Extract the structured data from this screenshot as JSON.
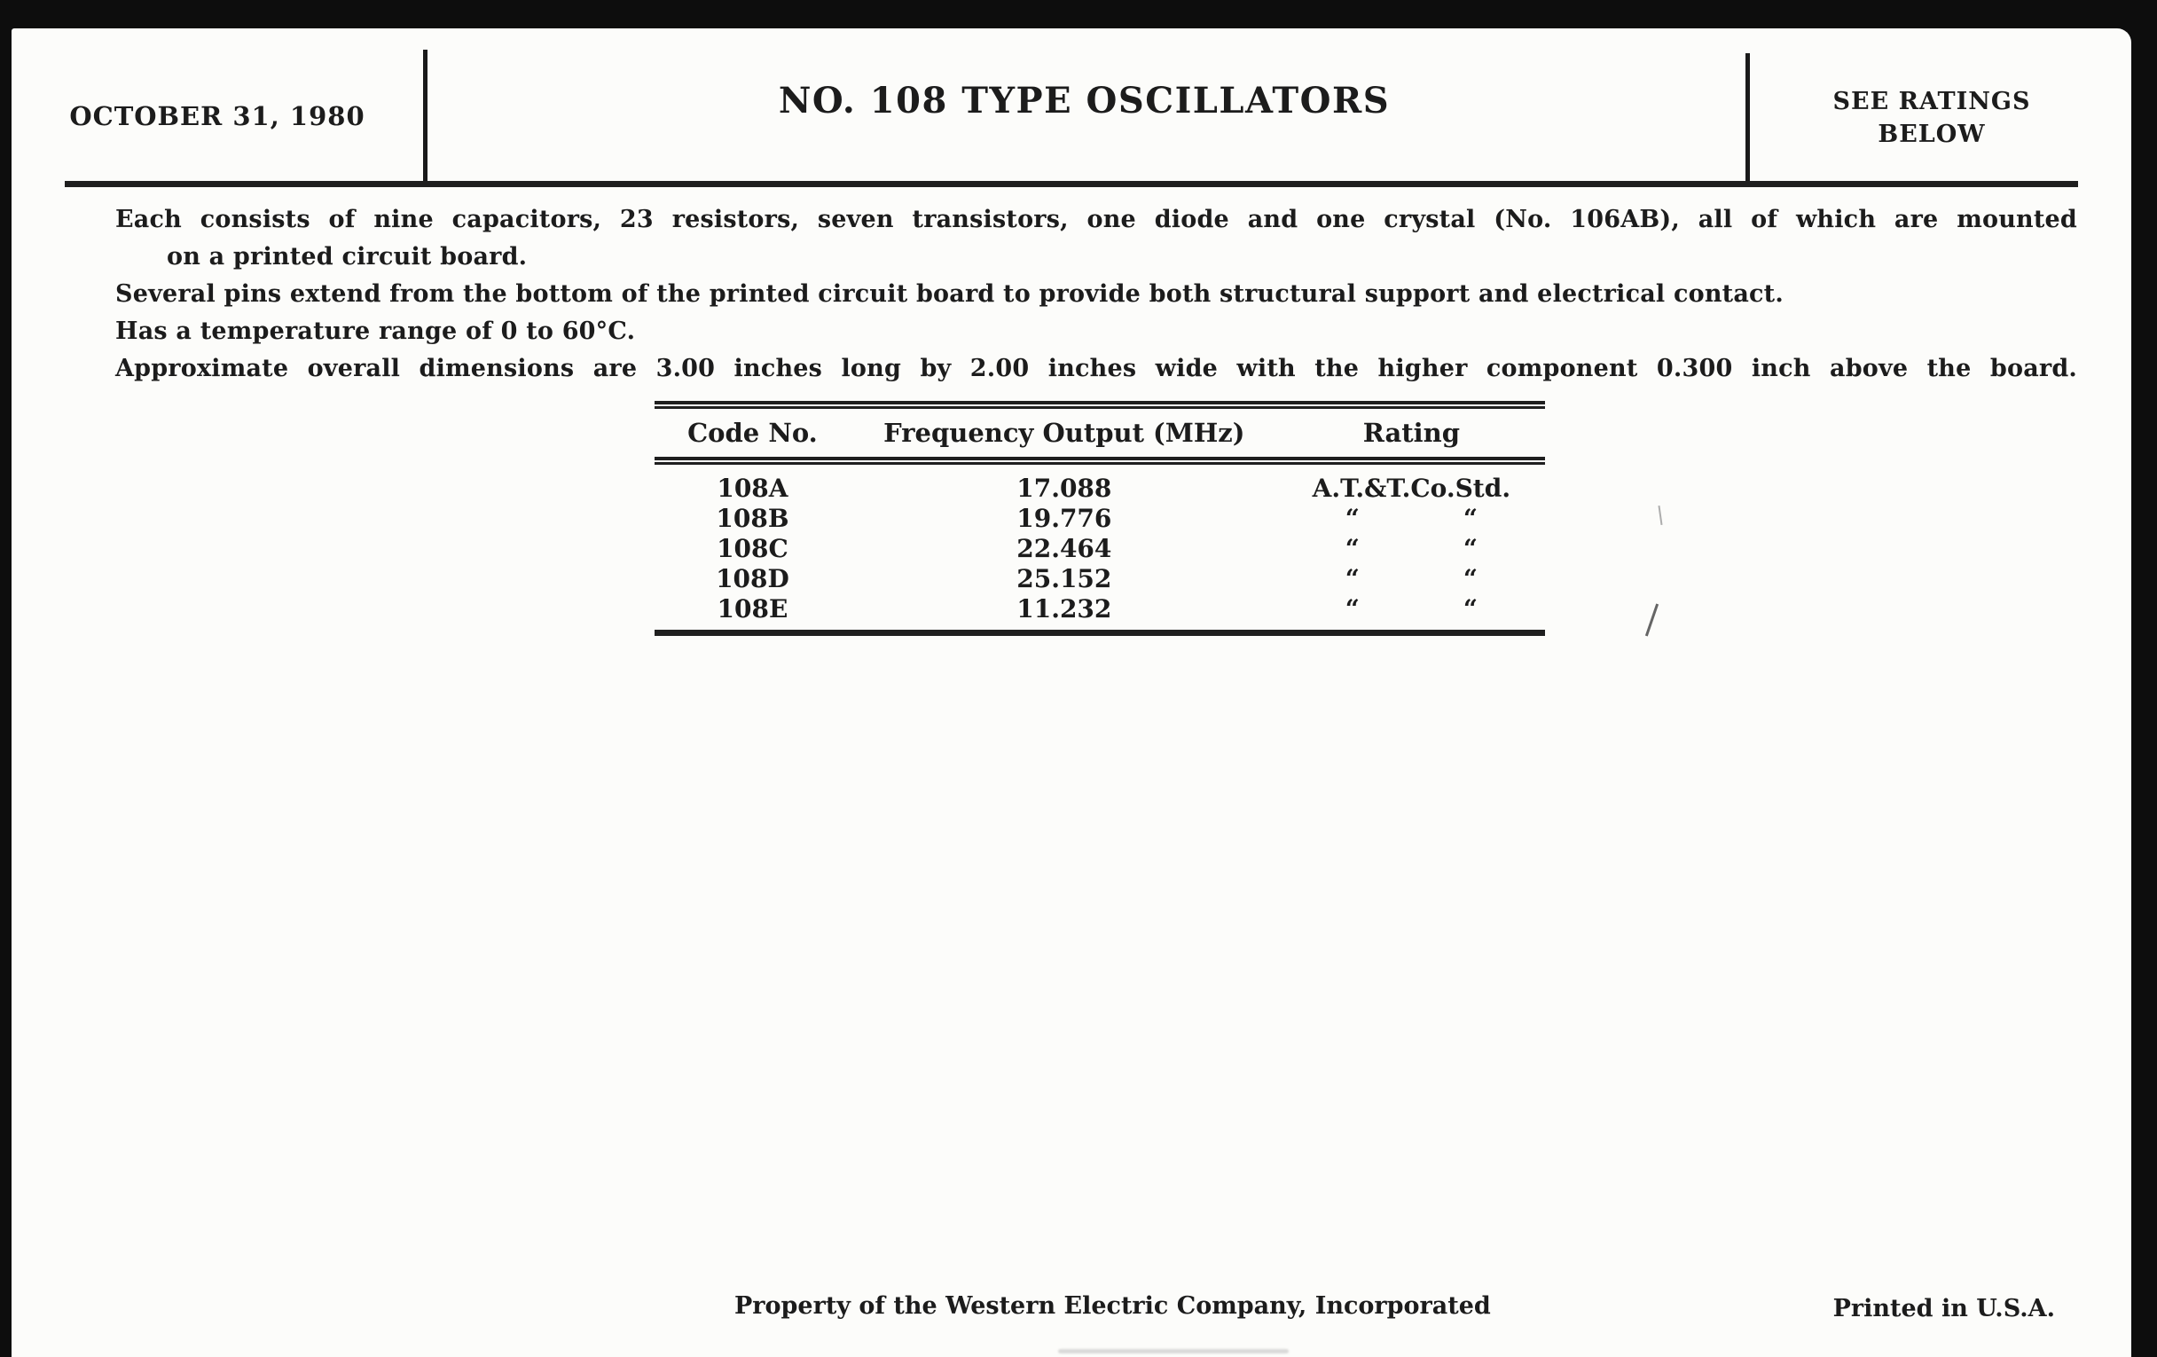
{
  "header": {
    "date": "OCTOBER 31, 1980",
    "title": "NO. 108 TYPE OSCILLATORS",
    "ratings_note_line1": "SEE RATINGS",
    "ratings_note_line2": "BELOW"
  },
  "body": {
    "lines": [
      "Each consists of nine capacitors, 23 resistors, seven transistors, one diode and one crystal (No. 106AB), all of which are mounted",
      "on a printed circuit board.",
      "Several pins extend from the bottom of the printed circuit board to provide both structural support and electrical contact.",
      "Has a temperature range of 0 to 60°C.",
      "Approximate overall dimensions are 3.00 inches long by 2.00 inches wide with the higher component 0.300 inch above the board."
    ]
  },
  "table": {
    "headers": [
      "Code No.",
      "Frequency Output (MHz)",
      "Rating"
    ],
    "rows": [
      {
        "code": "108A",
        "freq": "17.088",
        "rating": "A.T.&T.Co.Std."
      },
      {
        "code": "108B",
        "freq": "19.776",
        "rating": "“            “"
      },
      {
        "code": "108C",
        "freq": "22.464",
        "rating": "“            “"
      },
      {
        "code": "108D",
        "freq": "25.152",
        "rating": "“            “"
      },
      {
        "code": "108E",
        "freq": "11.232",
        "rating": "“            “"
      }
    ]
  },
  "footer": {
    "property": "Property of the Western Electric Company, Incorporated",
    "printed": "Printed in U.S.A."
  },
  "colors": {
    "paper": "#fcfcfa",
    "ink": "#1c1c1c",
    "frame": "#0d0d0d"
  }
}
